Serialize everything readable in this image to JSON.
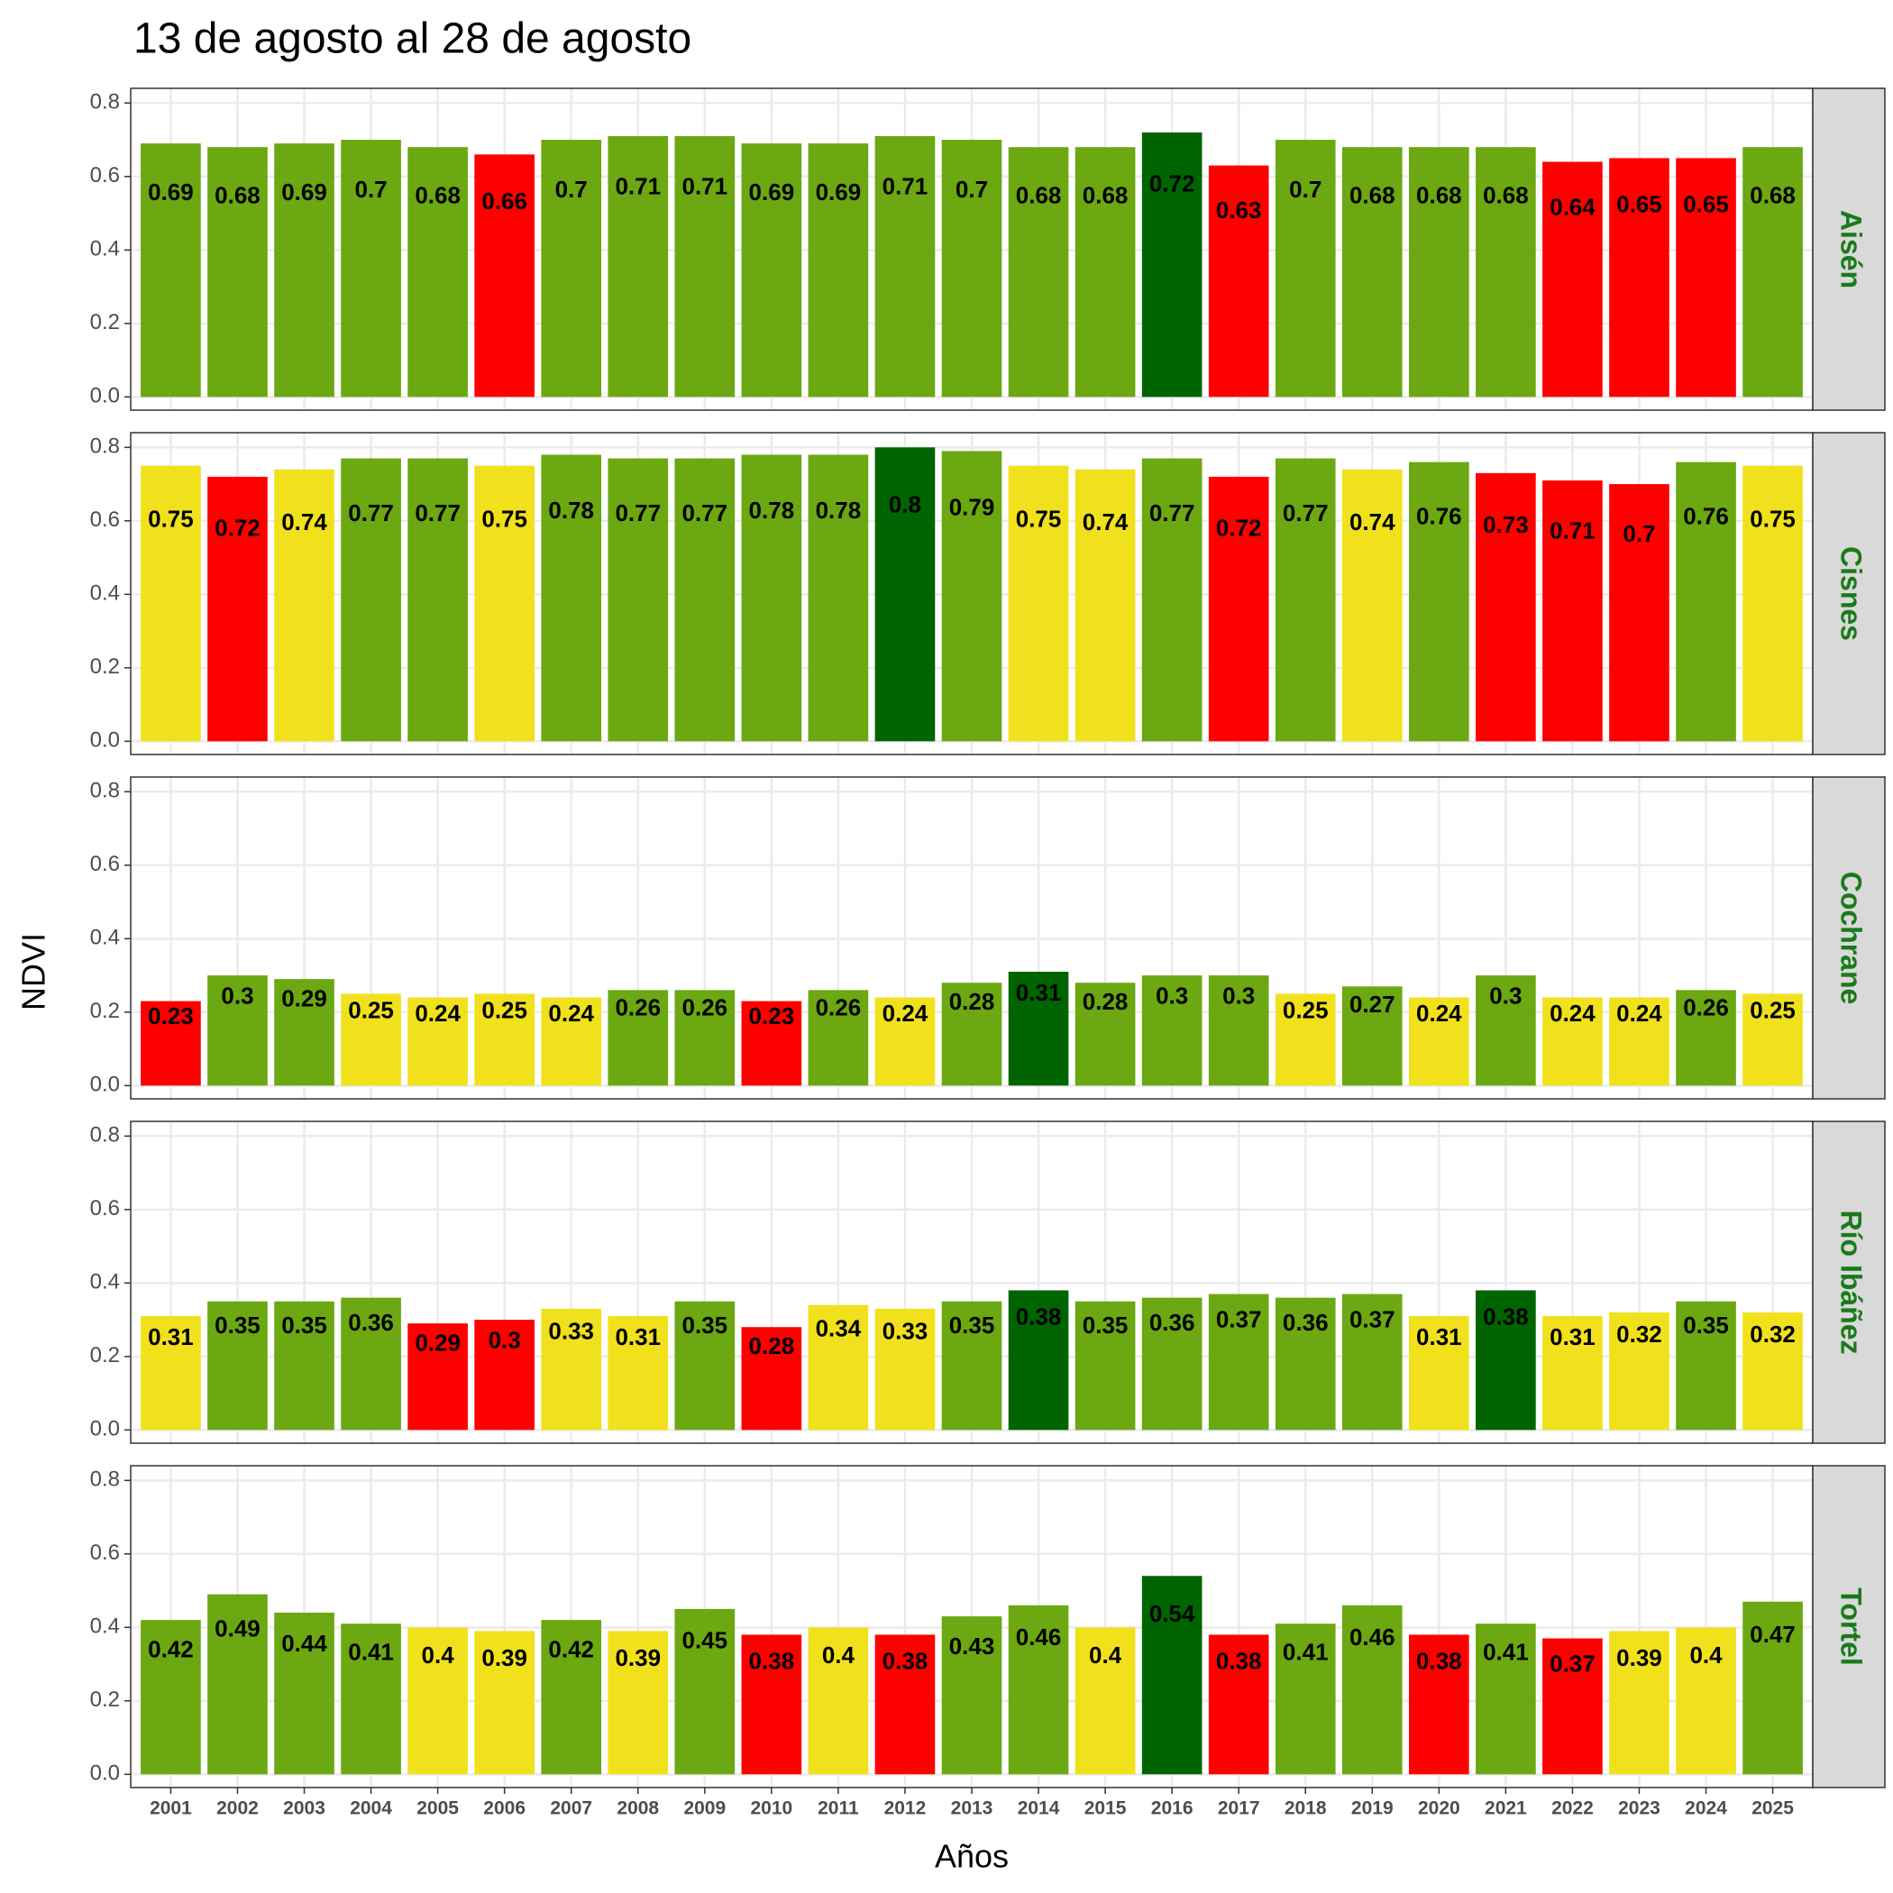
{
  "chart_data": {
    "type": "bar",
    "title": "13 de agosto al 28 de agosto",
    "x_label": "Años",
    "y_label": "NDVI",
    "categories": [
      "2001",
      "2002",
      "2003",
      "2004",
      "2005",
      "2006",
      "2007",
      "2008",
      "2009",
      "2010",
      "2011",
      "2012",
      "2013",
      "2014",
      "2015",
      "2016",
      "2017",
      "2018",
      "2019",
      "2020",
      "2021",
      "2022",
      "2023",
      "2024",
      "2025"
    ],
    "ylim": [
      -0.036,
      0.84
    ],
    "yticks": [
      {
        "value": 0,
        "label": "0.0"
      },
      0.2,
      0.4,
      0.6,
      0.8
    ],
    "grid": true,
    "panels": [
      {
        "name": "Aisén",
        "values": [
          0.69,
          0.68,
          0.69,
          0.7,
          0.68,
          0.66,
          0.7,
          0.71,
          0.71,
          0.69,
          0.69,
          0.71,
          0.7,
          0.68,
          0.68,
          0.72,
          0.63,
          0.7,
          0.68,
          0.68,
          0.68,
          0.64,
          0.65,
          0.65,
          0.68
        ],
        "colors": [
          "#6ba811",
          "#6ba811",
          "#6ba811",
          "#6ba811",
          "#6ba811",
          "#ff0000",
          "#6ba811",
          "#6ba811",
          "#6ba811",
          "#6ba811",
          "#6ba811",
          "#6ba811",
          "#6ba811",
          "#6ba811",
          "#6ba811",
          "#006400",
          "#ff0000",
          "#6ba811",
          "#6ba811",
          "#6ba811",
          "#6ba811",
          "#ff0000",
          "#ff0000",
          "#ff0000",
          "#6ba811"
        ]
      },
      {
        "name": "Cisnes",
        "values": [
          0.75,
          0.72,
          0.74,
          0.77,
          0.77,
          0.75,
          0.78,
          0.77,
          0.77,
          0.78,
          0.78,
          0.8,
          0.79,
          0.75,
          0.74,
          0.77,
          0.72,
          0.77,
          0.74,
          0.76,
          0.73,
          0.71,
          0.7,
          0.76,
          0.75
        ],
        "colors": [
          "#f0e11c",
          "#ff0000",
          "#f0e11c",
          "#6ba811",
          "#6ba811",
          "#f0e11c",
          "#6ba811",
          "#6ba811",
          "#6ba811",
          "#6ba811",
          "#6ba811",
          "#006400",
          "#6ba811",
          "#f0e11c",
          "#f0e11c",
          "#6ba811",
          "#ff0000",
          "#6ba811",
          "#f0e11c",
          "#6ba811",
          "#ff0000",
          "#ff0000",
          "#ff0000",
          "#6ba811",
          "#f0e11c"
        ]
      },
      {
        "name": "Cochrane",
        "values": [
          0.23,
          0.3,
          0.29,
          0.25,
          0.24,
          0.25,
          0.24,
          0.26,
          0.26,
          0.23,
          0.26,
          0.24,
          0.28,
          0.31,
          0.28,
          0.3,
          0.3,
          0.25,
          0.27,
          0.24,
          0.3,
          0.24,
          0.24,
          0.26,
          0.25
        ],
        "colors": [
          "#ff0000",
          "#6ba811",
          "#6ba811",
          "#f0e11c",
          "#f0e11c",
          "#f0e11c",
          "#f0e11c",
          "#6ba811",
          "#6ba811",
          "#ff0000",
          "#6ba811",
          "#f0e11c",
          "#6ba811",
          "#006400",
          "#6ba811",
          "#6ba811",
          "#6ba811",
          "#f0e11c",
          "#6ba811",
          "#f0e11c",
          "#6ba811",
          "#f0e11c",
          "#f0e11c",
          "#6ba811",
          "#f0e11c"
        ]
      },
      {
        "name": "Río Ibáñez",
        "values": [
          0.31,
          0.35,
          0.35,
          0.36,
          0.29,
          0.3,
          0.33,
          0.31,
          0.35,
          0.28,
          0.34,
          0.33,
          0.35,
          0.38,
          0.35,
          0.36,
          0.37,
          0.36,
          0.37,
          0.31,
          0.38,
          0.31,
          0.32,
          0.35,
          0.32
        ],
        "colors": [
          "#f0e11c",
          "#6ba811",
          "#6ba811",
          "#6ba811",
          "#ff0000",
          "#ff0000",
          "#f0e11c",
          "#f0e11c",
          "#6ba811",
          "#ff0000",
          "#f0e11c",
          "#f0e11c",
          "#6ba811",
          "#006400",
          "#6ba811",
          "#6ba811",
          "#6ba811",
          "#6ba811",
          "#6ba811",
          "#f0e11c",
          "#006400",
          "#f0e11c",
          "#f0e11c",
          "#6ba811",
          "#f0e11c"
        ]
      },
      {
        "name": "Tortel",
        "values": [
          0.42,
          0.49,
          0.44,
          0.41,
          0.4,
          0.39,
          0.42,
          0.39,
          0.45,
          0.38,
          0.4,
          0.38,
          0.43,
          0.46,
          0.4,
          0.54,
          0.38,
          0.41,
          0.46,
          0.38,
          0.41,
          0.37,
          0.39,
          0.4,
          0.47
        ],
        "colors": [
          "#6ba811",
          "#6ba811",
          "#6ba811",
          "#6ba811",
          "#f0e11c",
          "#f0e11c",
          "#6ba811",
          "#f0e11c",
          "#6ba811",
          "#ff0000",
          "#f0e11c",
          "#ff0000",
          "#6ba811",
          "#6ba811",
          "#f0e11c",
          "#006400",
          "#ff0000",
          "#6ba811",
          "#6ba811",
          "#ff0000",
          "#6ba811",
          "#ff0000",
          "#f0e11c",
          "#f0e11c",
          "#6ba811"
        ]
      }
    ]
  }
}
